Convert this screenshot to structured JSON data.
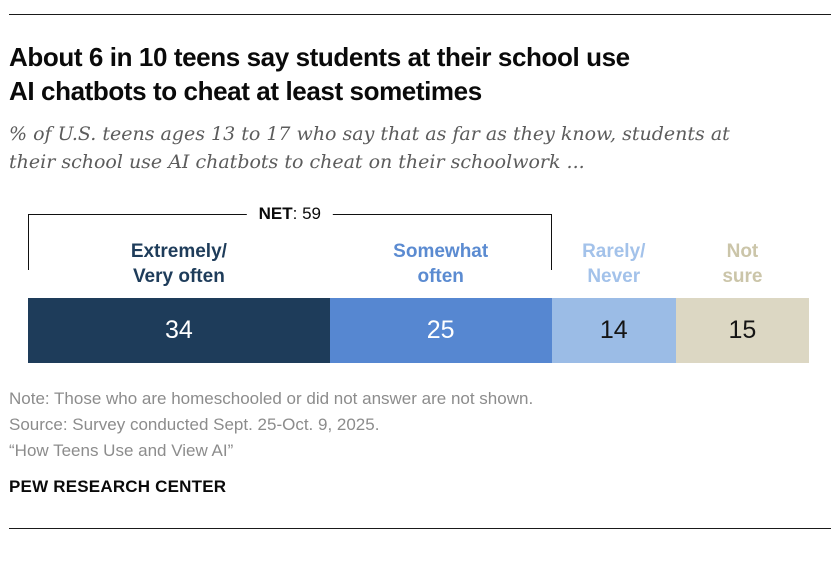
{
  "header": {
    "title_line1": "About 6 in 10 teens say students at their school use",
    "title_line2": "AI chatbots to cheat at least sometimes",
    "subtitle_line1": "% of U.S. teens ages 13 to 17 who say that as far as they know, students at",
    "subtitle_line2": "their school use AI chatbots to cheat on their schoolwork ..."
  },
  "chart": {
    "net": {
      "label": "NET",
      "rest": ": 59"
    },
    "segments": [
      {
        "label_line1": "Extremely/",
        "label_line2": "Very often",
        "value": 34,
        "color": "#1e3c5a",
        "value_color": "#ffffff",
        "label_color": "#1e3c5a"
      },
      {
        "label_line1": "Somewhat",
        "label_line2": "often",
        "value": 25,
        "color": "#5687d1",
        "value_color": "#ffffff",
        "label_color": "#5b8bd1"
      },
      {
        "label_line1": "Rarely/",
        "label_line2": "Never",
        "value": 14,
        "color": "#9bbce6",
        "value_color": "#151515",
        "label_color": "#a3c2ea"
      },
      {
        "label_line1": "Not",
        "label_line2": "sure",
        "value": 15,
        "color": "#dcd7c3",
        "value_color": "#151515",
        "label_color": "#cbc5a9"
      }
    ]
  },
  "chart_data": {
    "type": "bar",
    "subtype": "stacked-horizontal-single-bar",
    "title": "About 6 in 10 teens say students at their school use AI chatbots to cheat at least sometimes",
    "subtitle": "% of U.S. teens ages 13 to 17 who say that as far as they know, students at their school use AI chatbots to cheat on their schoolwork ...",
    "categories": [
      "Extremely/Very often",
      "Somewhat often",
      "Rarely/Never",
      "Not sure"
    ],
    "values": [
      34,
      25,
      14,
      15
    ],
    "unit": "percent of U.S. teens ages 13-17",
    "net": {
      "label": "NET",
      "value": 59,
      "covers": [
        "Extremely/Very often",
        "Somewhat often"
      ]
    },
    "colors": [
      "#1e3c5a",
      "#5687d1",
      "#9bbce6",
      "#dcd7c3"
    ],
    "value_labels_shown": true,
    "axis_shown": false,
    "legend_position": "labels-above-segments"
  },
  "footer": {
    "note": "Note: Those who are homeschooled or did not answer are not shown.",
    "source": "Source: Survey conducted Sept. 25-Oct. 9, 2025.",
    "citation": "“How Teens Use and View AI”",
    "brand": "PEW RESEARCH CENTER"
  }
}
